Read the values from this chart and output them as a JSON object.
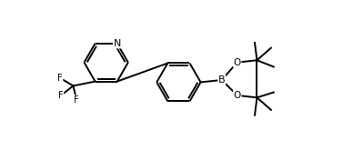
{
  "bg_color": "#ffffff",
  "line_color": "#000000",
  "line_width": 1.4,
  "font_size_atom": 7.5,
  "fig_width": 3.88,
  "fig_height": 1.76,
  "dpi": 100,
  "xlim": [
    -0.5,
    7.5
  ],
  "ylim": [
    -0.3,
    3.0
  ]
}
